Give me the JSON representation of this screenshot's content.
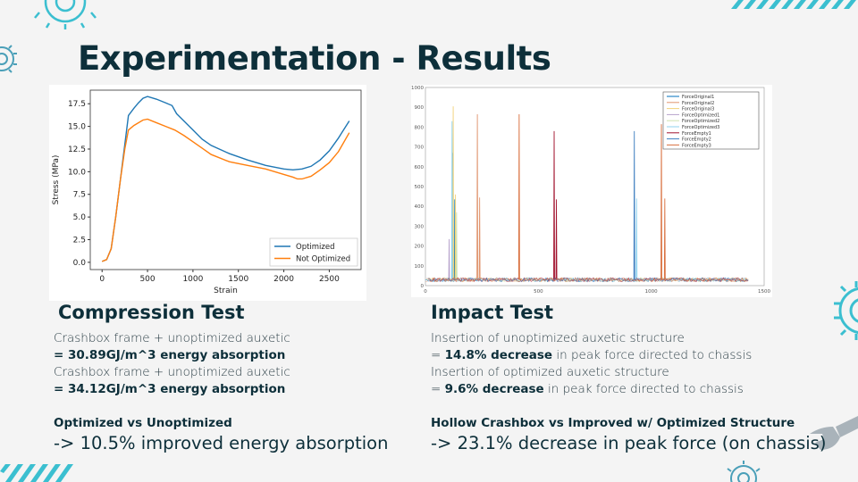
{
  "title": "Experimentation - Results",
  "compression": {
    "heading": "Compression Test",
    "line1": "Crashbox frame + unoptimized auxetic",
    "line2_bold": "= 30.89GJ/m^3 energy absorption",
    "line3": "Crashbox frame + unoptimized auxetic",
    "line4_bold": "= 34.12GJ/m^3 energy absorption",
    "sub": "Optimized vs Unoptimized",
    "result": "-> 10.5% improved energy absorption"
  },
  "impact": {
    "heading": "Impact Test",
    "line1": "Insertion of unoptimized auxetic structure",
    "line2_prefix": "= ",
    "line2_bold": "14.8% decrease",
    "line2_rest": " in peak force directed to chassis",
    "line3": "Insertion of optimized auxetic structure",
    "line4_prefix": "= ",
    "line4_bold": "9.6% decrease",
    "line4_rest": " in peak force directed to chassis",
    "sub": "Hollow Crashbox vs Improved w/ Optimized Structure",
    "result": "-> 23.1% decrease in peak force (on chassis)"
  },
  "colors": {
    "accent": "#3bbfd0",
    "title": "#0d2f3a",
    "wrench": "#a9b3ba"
  },
  "chart_data": [
    {
      "type": "line",
      "title": "",
      "xlabel": "Strain",
      "ylabel": "Stress (MPa)",
      "xlim": [
        -130,
        2850
      ],
      "ylim": [
        -0.8,
        19.0
      ],
      "xticks": [
        0,
        500,
        1000,
        1500,
        2000,
        2500
      ],
      "yticks": [
        0.0,
        2.5,
        5.0,
        7.5,
        10.0,
        12.5,
        15.0,
        17.5
      ],
      "ytick_labels": [
        "0.0",
        "2.5",
        "5.0",
        "7.5",
        "10.0",
        "12.5",
        "15.0",
        "17.5"
      ],
      "legend_position": "lower-right",
      "series": [
        {
          "name": "Optimized",
          "color": "#1f77b4",
          "x": [
            0,
            50,
            100,
            150,
            200,
            250,
            290,
            350,
            400,
            450,
            500,
            600,
            700,
            770,
            820,
            900,
            1000,
            1100,
            1200,
            1400,
            1600,
            1800,
            2000,
            2100,
            2200,
            2300,
            2400,
            2500,
            2600,
            2720
          ],
          "y": [
            0.1,
            0.3,
            1.5,
            5,
            9,
            13,
            16.2,
            17,
            17.6,
            18.1,
            18.3,
            18,
            17.6,
            17.3,
            16.4,
            15.6,
            14.6,
            13.6,
            12.9,
            12,
            11.3,
            10.7,
            10.3,
            10.2,
            10.3,
            10.6,
            11.3,
            12.3,
            13.7,
            15.6
          ]
        },
        {
          "name": "Not Optimized",
          "color": "#ff7f0e",
          "x": [
            0,
            50,
            100,
            150,
            200,
            250,
            290,
            350,
            450,
            500,
            600,
            700,
            800,
            900,
            1000,
            1100,
            1200,
            1400,
            1600,
            1800,
            2000,
            2100,
            2150,
            2200,
            2300,
            2400,
            2500,
            2600,
            2720
          ],
          "y": [
            0.1,
            0.3,
            1.5,
            5,
            9,
            12.5,
            14.6,
            15.1,
            15.7,
            15.8,
            15.4,
            15.0,
            14.6,
            14.0,
            13.3,
            12.6,
            11.9,
            11.1,
            10.7,
            10.3,
            9.7,
            9.4,
            9.2,
            9.2,
            9.5,
            10.2,
            11.0,
            12.2,
            14.3
          ]
        }
      ]
    },
    {
      "type": "line",
      "title": "",
      "xlabel": "",
      "ylabel": "",
      "xlim": [
        0,
        1500
      ],
      "ylim": [
        0,
        1000
      ],
      "xticks": [
        0,
        500,
        1000,
        1500
      ],
      "yticks": [
        0,
        100,
        200,
        300,
        400,
        500,
        600,
        700,
        800,
        900,
        1000
      ],
      "legend_position": "top-right",
      "baseline_range": [
        20,
        40
      ],
      "baseline_xmax": 1430,
      "series": [
        {
          "name": "ForceOriginal1",
          "color": "#0072bd",
          "spikes": [
            [
              120,
              670
            ],
            [
              130,
              435
            ]
          ]
        },
        {
          "name": "ForceOriginal2",
          "color": "#e0956f",
          "spikes": [
            [
              230,
              865
            ],
            [
              240,
              445
            ]
          ]
        },
        {
          "name": "ForceOriginal3",
          "color": "#f2d27a",
          "spikes": [
            [
              123,
              905
            ],
            [
              133,
              460
            ]
          ]
        },
        {
          "name": "ForceOptimized1",
          "color": "#b7a3cc",
          "spikes": [
            [
              105,
              235
            ]
          ]
        },
        {
          "name": "ForceOptimized2",
          "color": "#cfe3b0",
          "spikes": [
            [
              138,
              370
            ]
          ]
        },
        {
          "name": "ForceOptimized3",
          "color": "#8fd3ef",
          "spikes": [
            [
              118,
              830
            ],
            [
              935,
              440
            ]
          ]
        },
        {
          "name": "ForceEmpty1",
          "color": "#a2142f",
          "spikes": [
            [
              570,
              780
            ],
            [
              580,
              435
            ]
          ]
        },
        {
          "name": "ForceEmpty2",
          "color": "#3f7fc0",
          "spikes": [
            [
              925,
              780
            ]
          ]
        },
        {
          "name": "ForceEmpty3",
          "color": "#d9703f",
          "spikes": [
            [
              415,
              865
            ],
            [
              1045,
              815
            ],
            [
              1060,
              440
            ]
          ]
        }
      ]
    }
  ]
}
